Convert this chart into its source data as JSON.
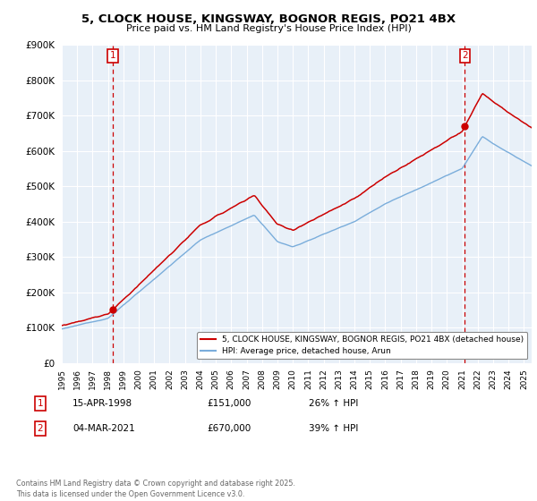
{
  "title": "5, CLOCK HOUSE, KINGSWAY, BOGNOR REGIS, PO21 4BX",
  "subtitle": "Price paid vs. HM Land Registry's House Price Index (HPI)",
  "transaction1": {
    "date": "15-APR-1998",
    "price": 151000,
    "hpi_pct": "26% ↑ HPI",
    "label": "1",
    "year": 1998.29
  },
  "transaction2": {
    "date": "04-MAR-2021",
    "price": 670000,
    "hpi_pct": "39% ↑ HPI",
    "label": "2",
    "year": 2021.17
  },
  "legend1_text": "5, CLOCK HOUSE, KINGSWAY, BOGNOR REGIS, PO21 4BX (detached house)",
  "legend2_text": "HPI: Average price, detached house, Arun",
  "footer": "Contains HM Land Registry data © Crown copyright and database right 2025.\nThis data is licensed under the Open Government Licence v3.0.",
  "house_color": "#cc0000",
  "hpi_color": "#7aaddb",
  "ylim": [
    0,
    900000
  ],
  "yticks": [
    0,
    100000,
    200000,
    300000,
    400000,
    500000,
    600000,
    700000,
    800000,
    900000
  ],
  "xmin": 1995,
  "xmax": 2025.5,
  "background_color": "#ffffff",
  "plot_bg_color": "#e8f0f8",
  "grid_color": "#ffffff"
}
